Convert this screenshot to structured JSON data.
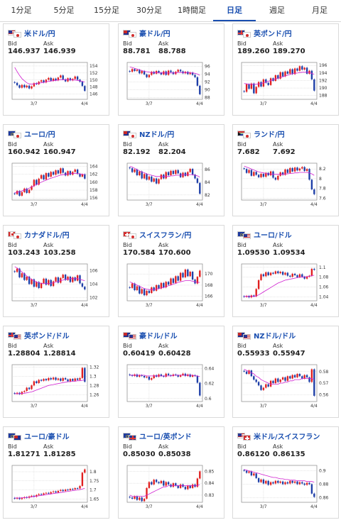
{
  "tabs": [
    {
      "label": "1分足",
      "active": false
    },
    {
      "label": "5分足",
      "active": false
    },
    {
      "label": "15分足",
      "active": false
    },
    {
      "label": "30分足",
      "active": false
    },
    {
      "label": "1時間足",
      "active": false
    },
    {
      "label": "日足",
      "active": true
    },
    {
      "label": "週足",
      "active": false
    },
    {
      "label": "月足",
      "active": false
    }
  ],
  "labels": {
    "bid": "Bid",
    "ask": "Ask",
    "x_start": "3/7",
    "x_end": "4/4"
  },
  "colors": {
    "up": "#e02020",
    "down": "#1f3fa8",
    "ma": "#d020d0",
    "accent": "#1a4fb0"
  },
  "pairs": [
    {
      "name": "米ドル/円",
      "flags": [
        "us",
        "jp"
      ],
      "bid": "146.937",
      "ask": "146.939",
      "ticks": [
        "154",
        "152",
        "150",
        "148",
        "146"
      ],
      "range": [
        144.5,
        155
      ],
      "close": [
        149.2,
        148.5,
        147.8,
        148.6,
        147.9,
        148.4,
        147.6,
        148.2,
        149.1,
        148.8,
        149.5,
        149.9,
        149.3,
        150.1,
        150.6,
        149.8,
        150.4,
        149.9,
        150.7,
        151.3,
        150.2,
        149.6,
        150.5,
        149.9,
        150.3,
        151.0,
        150.1,
        149.5,
        148.3,
        146.9
      ],
      "ma": [
        153.6,
        152.4,
        151.3,
        150.4,
        149.8,
        149.2,
        148.9,
        148.8,
        148.9,
        149.0,
        149.1,
        149.2,
        149.3,
        149.5,
        149.6,
        149.7,
        149.8,
        149.9,
        150.0,
        150.1,
        150.1,
        150.1,
        150.1,
        150.1,
        150.0,
        150.0,
        149.9,
        149.8,
        149.6,
        149.4
      ]
    },
    {
      "name": "豪ドル/円",
      "flags": [
        "au",
        "jp"
      ],
      "bid": "88.781",
      "ask": "88.788",
      "ticks": [
        "96",
        "94",
        "92",
        "90",
        "88"
      ],
      "range": [
        87.5,
        97
      ],
      "close": [
        94.6,
        95.3,
        94.8,
        95.1,
        94.2,
        94.8,
        93.9,
        93.2,
        93.8,
        94.6,
        94.1,
        94.8,
        94.4,
        93.9,
        94.7,
        93.8,
        94.9,
        94.5,
        94.0,
        94.6,
        95.1,
        94.7,
        94.2,
        94.6,
        94.0,
        94.4,
        93.8,
        93.2,
        91.0,
        88.8
      ],
      "ma": [
        95.8,
        95.7,
        95.5,
        95.3,
        95.1,
        94.9,
        94.7,
        94.6,
        94.5,
        94.4,
        94.4,
        94.4,
        94.3,
        94.3,
        94.3,
        94.3,
        94.3,
        94.3,
        94.3,
        94.3,
        94.4,
        94.4,
        94.4,
        94.4,
        94.4,
        94.3,
        94.3,
        94.2,
        94.0,
        93.7
      ]
    },
    {
      "name": "英ポンド/円",
      "flags": [
        "gb",
        "jp"
      ],
      "bid": "189.260",
      "ask": "189.270",
      "ticks": [
        "196",
        "194",
        "192",
        "190",
        "188"
      ],
      "range": [
        187,
        196.8
      ],
      "close": [
        189.0,
        191.0,
        189.8,
        191.2,
        188.6,
        190.3,
        191.6,
        190.4,
        192.3,
        191.4,
        190.8,
        192.6,
        191.9,
        193.4,
        192.5,
        194.2,
        193.1,
        194.4,
        193.8,
        195.0,
        193.7,
        195.2,
        194.6,
        195.8,
        194.9,
        195.4,
        193.8,
        194.6,
        192.3,
        189.3
      ],
      "ma": [
        191.2,
        191.1,
        191.0,
        191.0,
        191.0,
        191.0,
        191.1,
        191.2,
        191.4,
        191.6,
        191.8,
        192.0,
        192.2,
        192.4,
        192.6,
        192.8,
        193.0,
        193.2,
        193.4,
        193.6,
        193.8,
        193.9,
        194.0,
        194.1,
        194.2,
        194.2,
        194.2,
        194.1,
        193.9,
        193.6
      ]
    },
    {
      "name": "ユーロ/円",
      "flags": [
        "eu",
        "jp"
      ],
      "bid": "160.942",
      "ask": "160.947",
      "ticks": [
        "164",
        "162",
        "160",
        "158",
        "156"
      ],
      "range": [
        155.5,
        164.8
      ],
      "close": [
        157.0,
        157.8,
        156.6,
        157.5,
        158.4,
        157.3,
        158.1,
        159.0,
        160.6,
        159.4,
        160.9,
        161.8,
        160.7,
        162.3,
        161.4,
        162.6,
        161.9,
        163.0,
        162.2,
        163.5,
        162.4,
        161.7,
        162.8,
        161.9,
        162.6,
        163.2,
        162.1,
        161.4,
        162.0,
        160.9
      ],
      "ma": [
        157.3,
        157.5,
        157.6,
        157.8,
        158.0,
        158.2,
        158.5,
        158.8,
        159.1,
        159.4,
        159.7,
        160.0,
        160.3,
        160.5,
        160.8,
        161.0,
        161.2,
        161.4,
        161.6,
        161.8,
        161.9,
        162.0,
        162.1,
        162.2,
        162.2,
        162.2,
        162.2,
        162.1,
        162.0,
        161.9
      ]
    },
    {
      "name": "NZドル/円",
      "flags": [
        "nz",
        "jp"
      ],
      "bid": "82.192",
      "ask": "82.204",
      "ticks": [
        "86",
        "84",
        "82"
      ],
      "range": [
        81.2,
        87
      ],
      "close": [
        86.2,
        85.6,
        86.0,
        85.1,
        85.7,
        84.6,
        85.3,
        84.4,
        84.9,
        84.1,
        84.6,
        83.8,
        84.5,
        85.2,
        84.6,
        85.6,
        85.1,
        85.8,
        85.3,
        85.9,
        85.4,
        84.8,
        85.5,
        85.0,
        85.6,
        86.1,
        85.2,
        84.6,
        83.9,
        82.2
      ],
      "ma": [
        86.5,
        86.4,
        86.2,
        86.0,
        85.8,
        85.6,
        85.5,
        85.3,
        85.2,
        85.1,
        85.0,
        84.9,
        84.9,
        84.9,
        84.9,
        84.9,
        84.9,
        85.0,
        85.0,
        85.1,
        85.1,
        85.1,
        85.2,
        85.2,
        85.2,
        85.2,
        85.2,
        85.1,
        85.0,
        84.8
      ]
    },
    {
      "name": "ランド/円",
      "flags": [
        "za",
        "jp"
      ],
      "bid": "7.682",
      "ask": "7.692",
      "ticks": [
        "8.2",
        "8",
        "7.8",
        "7.6"
      ],
      "range": [
        7.56,
        8.32
      ],
      "close": [
        8.2,
        8.12,
        8.18,
        8.06,
        8.14,
        8.08,
        8.03,
        8.1,
        8.04,
        8.12,
        8.07,
        8.15,
        8.02,
        7.98,
        8.06,
        8.13,
        8.08,
        8.19,
        8.12,
        8.22,
        8.15,
        8.23,
        8.17,
        8.21,
        8.24,
        8.16,
        8.2,
        7.98,
        7.78,
        7.68
      ],
      "ma": [
        8.26,
        8.24,
        8.22,
        8.2,
        8.18,
        8.16,
        8.14,
        8.13,
        8.12,
        8.11,
        8.1,
        8.1,
        8.09,
        8.09,
        8.09,
        8.09,
        8.09,
        8.1,
        8.1,
        8.11,
        8.11,
        8.12,
        8.12,
        8.13,
        8.13,
        8.13,
        8.13,
        8.12,
        8.1,
        8.07
      ]
    },
    {
      "name": "カナダドル/円",
      "flags": [
        "ca",
        "jp"
      ],
      "bid": "103.243",
      "ask": "103.258",
      "ticks": [
        "106",
        "104",
        "102"
      ],
      "range": [
        101.5,
        107
      ],
      "close": [
        105.8,
        106.3,
        105.0,
        105.6,
        104.6,
        105.1,
        104.0,
        104.7,
        103.6,
        104.3,
        103.4,
        104.1,
        104.8,
        103.9,
        104.6,
        103.7,
        104.4,
        105.0,
        104.2,
        104.9,
        105.4,
        104.6,
        105.1,
        104.3,
        105.0,
        104.5,
        105.3,
        104.1,
        103.6,
        103.2
      ],
      "ma": [
        106.6,
        106.4,
        106.1,
        105.8,
        105.5,
        105.2,
        104.9,
        104.7,
        104.5,
        104.3,
        104.2,
        104.1,
        104.1,
        104.1,
        104.1,
        104.1,
        104.2,
        104.3,
        104.4,
        104.5,
        104.6,
        104.7,
        104.7,
        104.8,
        104.8,
        104.8,
        104.8,
        104.7,
        104.6,
        104.5
      ]
    },
    {
      "name": "スイスフラン/円",
      "flags": [
        "ch",
        "jp"
      ],
      "bid": "170.584",
      "ask": "170.600",
      "ticks": [
        "170",
        "168",
        "166"
      ],
      "range": [
        165.2,
        171.8
      ],
      "close": [
        167.5,
        168.3,
        167.1,
        167.8,
        166.5,
        167.3,
        166.2,
        167.0,
        166.6,
        167.6,
        167.0,
        168.0,
        167.4,
        168.4,
        167.6,
        168.6,
        168.1,
        169.2,
        168.4,
        169.6,
        168.8,
        170.2,
        169.4,
        170.8,
        169.6,
        170.4,
        169.0,
        168.3,
        169.5,
        170.6
      ],
      "ma": [
        168.6,
        168.4,
        168.2,
        168.0,
        167.8,
        167.6,
        167.4,
        167.3,
        167.2,
        167.2,
        167.2,
        167.3,
        167.4,
        167.5,
        167.6,
        167.7,
        167.9,
        168.0,
        168.2,
        168.3,
        168.5,
        168.6,
        168.7,
        168.8,
        168.8,
        168.8,
        168.7,
        168.6,
        168.5,
        168.5
      ]
    },
    {
      "name": "ユーロ/ドル",
      "flags": [
        "eu",
        "us"
      ],
      "bid": "1.09530",
      "ask": "1.09534",
      "ticks": [
        "1.1",
        "1.08",
        "1.06",
        "1.04"
      ],
      "range": [
        1.032,
        1.107
      ],
      "close": [
        1.04,
        1.042,
        1.039,
        1.043,
        1.041,
        1.056,
        1.074,
        1.086,
        1.082,
        1.09,
        1.084,
        1.089,
        1.087,
        1.092,
        1.088,
        1.091,
        1.085,
        1.089,
        1.083,
        1.081,
        1.087,
        1.084,
        1.08,
        1.086,
        1.081,
        1.077,
        1.081,
        1.083,
        1.097,
        1.095
      ],
      "ma": [
        1.041,
        1.041,
        1.041,
        1.041,
        1.041,
        1.042,
        1.044,
        1.047,
        1.05,
        1.053,
        1.056,
        1.059,
        1.062,
        1.065,
        1.068,
        1.07,
        1.072,
        1.074,
        1.075,
        1.076,
        1.077,
        1.078,
        1.079,
        1.08,
        1.08,
        1.081,
        1.081,
        1.082,
        1.083,
        1.084
      ]
    },
    {
      "name": "英ポンド/ドル",
      "flags": [
        "gb",
        "us"
      ],
      "bid": "1.28804",
      "ask": "1.28814",
      "ticks": [
        "1.32",
        "1.3",
        "1.28",
        "1.26"
      ],
      "range": [
        1.245,
        1.325
      ],
      "close": [
        1.262,
        1.264,
        1.261,
        1.266,
        1.268,
        1.275,
        1.272,
        1.28,
        1.289,
        1.285,
        1.292,
        1.29,
        1.294,
        1.291,
        1.296,
        1.293,
        1.297,
        1.292,
        1.295,
        1.29,
        1.296,
        1.293,
        1.289,
        1.294,
        1.29,
        1.295,
        1.292,
        1.296,
        1.318,
        1.288
      ],
      "ma": [
        1.262,
        1.262,
        1.262,
        1.263,
        1.263,
        1.264,
        1.265,
        1.266,
        1.268,
        1.27,
        1.272,
        1.274,
        1.276,
        1.278,
        1.28,
        1.281,
        1.282,
        1.283,
        1.284,
        1.285,
        1.286,
        1.287,
        1.288,
        1.288,
        1.289,
        1.289,
        1.29,
        1.29,
        1.291,
        1.292
      ]
    },
    {
      "name": "豪ドル/ドル",
      "flags": [
        "au",
        "us"
      ],
      "bid": "0.60419",
      "ask": "0.60428",
      "ticks": [
        "0.64",
        "0.62",
        "0.6"
      ],
      "range": [
        0.596,
        0.645
      ],
      "close": [
        0.631,
        0.63,
        0.632,
        0.629,
        0.631,
        0.63,
        0.628,
        0.629,
        0.625,
        0.627,
        0.631,
        0.629,
        0.632,
        0.63,
        0.629,
        0.633,
        0.631,
        0.63,
        0.632,
        0.631,
        0.629,
        0.631,
        0.633,
        0.63,
        0.632,
        0.629,
        0.631,
        0.63,
        0.621,
        0.604
      ],
      "ma": [
        0.631,
        0.631,
        0.631,
        0.631,
        0.631,
        0.631,
        0.631,
        0.63,
        0.63,
        0.63,
        0.63,
        0.63,
        0.63,
        0.63,
        0.63,
        0.63,
        0.63,
        0.63,
        0.631,
        0.631,
        0.631,
        0.631,
        0.631,
        0.631,
        0.631,
        0.631,
        0.631,
        0.63,
        0.63,
        0.629
      ]
    },
    {
      "name": "NZドル/ドル",
      "flags": [
        "nz",
        "us"
      ],
      "bid": "0.55933",
      "ask": "0.55947",
      "ticks": [
        "0.58",
        "0.57",
        "0.56"
      ],
      "range": [
        0.554,
        0.586
      ],
      "close": [
        0.58,
        0.578,
        0.581,
        0.576,
        0.573,
        0.571,
        0.568,
        0.564,
        0.566,
        0.569,
        0.567,
        0.572,
        0.57,
        0.574,
        0.571,
        0.573,
        0.575,
        0.572,
        0.576,
        0.574,
        0.577,
        0.575,
        0.578,
        0.576,
        0.574,
        0.577,
        0.575,
        0.571,
        0.582,
        0.559
      ],
      "ma": [
        0.582,
        0.581,
        0.58,
        0.579,
        0.578,
        0.576,
        0.575,
        0.573,
        0.572,
        0.571,
        0.57,
        0.569,
        0.569,
        0.569,
        0.569,
        0.57,
        0.57,
        0.571,
        0.571,
        0.572,
        0.572,
        0.573,
        0.573,
        0.573,
        0.574,
        0.574,
        0.574,
        0.574,
        0.574,
        0.573
      ]
    },
    {
      "name": "ユーロ/豪ドル",
      "flags": [
        "eu",
        "au"
      ],
      "bid": "1.81271",
      "ask": "1.81285",
      "ticks": [
        "1.8",
        "1.75",
        "1.7",
        "1.65"
      ],
      "range": [
        1.632,
        1.835
      ],
      "close": [
        1.652,
        1.656,
        1.65,
        1.655,
        1.66,
        1.657,
        1.664,
        1.668,
        1.663,
        1.672,
        1.677,
        1.674,
        1.681,
        1.684,
        1.68,
        1.688,
        1.692,
        1.686,
        1.695,
        1.7,
        1.694,
        1.702,
        1.699,
        1.706,
        1.703,
        1.71,
        1.708,
        1.722,
        1.795,
        1.813
      ],
      "ma": [
        1.656,
        1.656,
        1.656,
        1.657,
        1.658,
        1.659,
        1.66,
        1.662,
        1.664,
        1.666,
        1.668,
        1.67,
        1.672,
        1.674,
        1.676,
        1.678,
        1.68,
        1.682,
        1.684,
        1.686,
        1.688,
        1.69,
        1.692,
        1.694,
        1.696,
        1.698,
        1.7,
        1.702,
        1.705,
        1.709
      ]
    },
    {
      "name": "ユーロ/英ポンド",
      "flags": [
        "eu",
        "gb"
      ],
      "bid": "0.85030",
      "ask": "0.85038",
      "ticks": [
        "0.85",
        "0.84",
        "0.83"
      ],
      "range": [
        0.824,
        0.855
      ],
      "close": [
        0.828,
        0.827,
        0.829,
        0.826,
        0.828,
        0.825,
        0.827,
        0.836,
        0.841,
        0.839,
        0.843,
        0.841,
        0.84,
        0.842,
        0.838,
        0.841,
        0.839,
        0.837,
        0.84,
        0.838,
        0.836,
        0.839,
        0.837,
        0.835,
        0.838,
        0.836,
        0.839,
        0.837,
        0.844,
        0.85
      ],
      "ma": [
        0.83,
        0.829,
        0.829,
        0.829,
        0.829,
        0.829,
        0.829,
        0.83,
        0.831,
        0.832,
        0.833,
        0.834,
        0.835,
        0.836,
        0.837,
        0.837,
        0.838,
        0.838,
        0.838,
        0.838,
        0.838,
        0.838,
        0.838,
        0.838,
        0.838,
        0.838,
        0.838,
        0.838,
        0.838,
        0.839
      ]
    },
    {
      "name": "米ドル/スイスフラン",
      "flags": [
        "us",
        "ch"
      ],
      "bid": "0.86120",
      "ask": "0.86135",
      "ticks": [
        "0.9",
        "0.88",
        "0.86"
      ],
      "range": [
        0.853,
        0.908
      ],
      "close": [
        0.9,
        0.897,
        0.899,
        0.893,
        0.896,
        0.889,
        0.883,
        0.887,
        0.881,
        0.885,
        0.879,
        0.883,
        0.881,
        0.885,
        0.882,
        0.884,
        0.88,
        0.883,
        0.881,
        0.885,
        0.882,
        0.884,
        0.88,
        0.883,
        0.881,
        0.879,
        0.882,
        0.88,
        0.866,
        0.861
      ],
      "ma": [
        0.902,
        0.901,
        0.9,
        0.899,
        0.898,
        0.897,
        0.896,
        0.895,
        0.894,
        0.893,
        0.892,
        0.891,
        0.89,
        0.89,
        0.889,
        0.888,
        0.888,
        0.887,
        0.887,
        0.886,
        0.886,
        0.886,
        0.885,
        0.885,
        0.885,
        0.885,
        0.884,
        0.884,
        0.884,
        0.883
      ]
    }
  ]
}
